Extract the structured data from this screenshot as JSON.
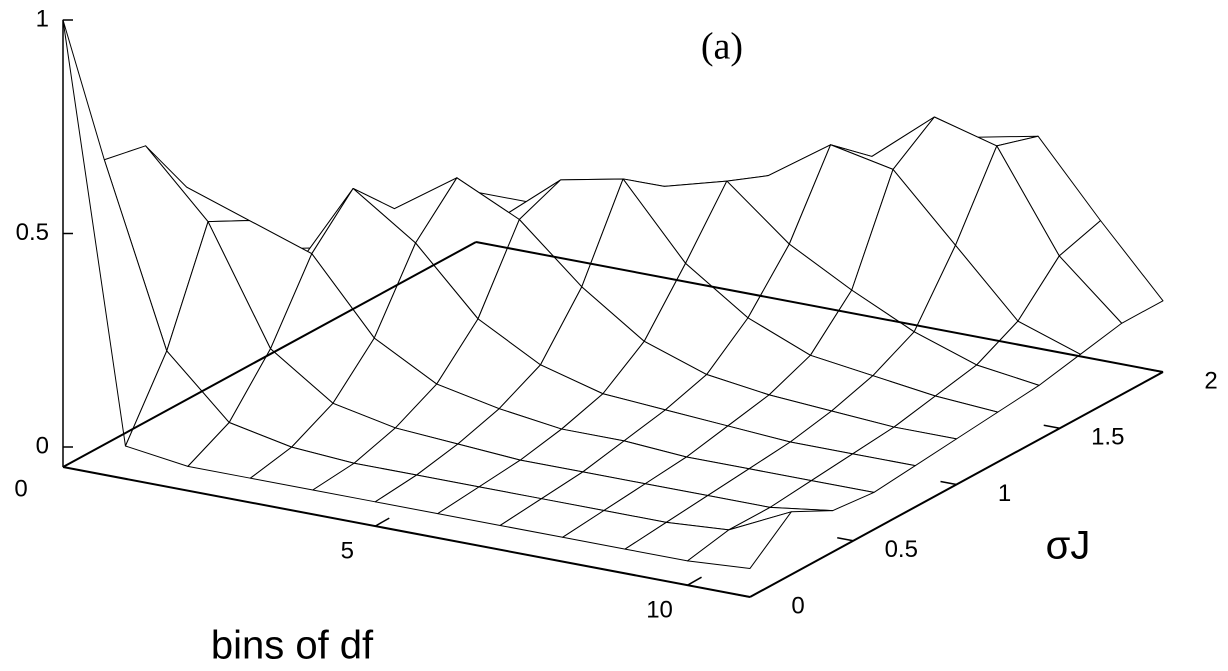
{
  "chart_data": {
    "type": "surface",
    "annotation": "(a)",
    "x_label": "bins of df",
    "y_label": "σJ",
    "x": [
      0,
      1,
      2,
      3,
      4,
      5,
      6,
      7,
      8,
      9,
      10,
      11
    ],
    "y": [
      0,
      0.2,
      0.4,
      0.6,
      0.8,
      1,
      1.2,
      1.4,
      1.6,
      1.8,
      2
    ],
    "values": [
      [
        1.0,
        0.03,
        0.01,
        0.01,
        0.01,
        0.01,
        0.01,
        0.01,
        0.01,
        0.01,
        0.01,
        0.02
      ],
      [
        0.62,
        0.2,
        0.06,
        0.03,
        0.02,
        0.02,
        0.02,
        0.02,
        0.02,
        0.02,
        0.03,
        0.1
      ],
      [
        0.6,
        0.45,
        0.18,
        0.08,
        0.05,
        0.04,
        0.03,
        0.03,
        0.03,
        0.03,
        0.03,
        0.05
      ],
      [
        0.45,
        0.4,
        0.35,
        0.18,
        0.1,
        0.07,
        0.05,
        0.05,
        0.04,
        0.04,
        0.04,
        0.04
      ],
      [
        0.3,
        0.22,
        0.45,
        0.35,
        0.2,
        0.12,
        0.08,
        0.07,
        0.06,
        0.05,
        0.05,
        0.05
      ],
      [
        0.2,
        0.12,
        0.35,
        0.45,
        0.38,
        0.25,
        0.15,
        0.1,
        0.08,
        0.07,
        0.06,
        0.06
      ],
      [
        0.15,
        0.1,
        0.18,
        0.3,
        0.42,
        0.45,
        0.28,
        0.18,
        0.12,
        0.1,
        0.08,
        0.07
      ],
      [
        0.12,
        0.1,
        0.12,
        0.2,
        0.32,
        0.38,
        0.42,
        0.3,
        0.22,
        0.15,
        0.1,
        0.08
      ],
      [
        0.1,
        0.1,
        0.1,
        0.15,
        0.22,
        0.3,
        0.38,
        0.48,
        0.45,
        0.3,
        0.15,
        0.1
      ],
      [
        0.08,
        0.08,
        0.09,
        0.12,
        0.18,
        0.25,
        0.32,
        0.4,
        0.52,
        0.48,
        0.25,
        0.12
      ],
      [
        0.07,
        0.07,
        0.08,
        0.1,
        0.12,
        0.18,
        0.25,
        0.32,
        0.42,
        0.45,
        0.28,
        0.12
      ]
    ],
    "xlim": [
      0,
      11
    ],
    "ylim": [
      0,
      2
    ],
    "zlim": [
      0,
      1
    ],
    "xticks": [
      0,
      5,
      10
    ],
    "yticks": [
      0,
      0.5,
      1,
      1.5,
      2
    ],
    "zticks": [
      0,
      0.5,
      1
    ],
    "color": "#000000"
  }
}
